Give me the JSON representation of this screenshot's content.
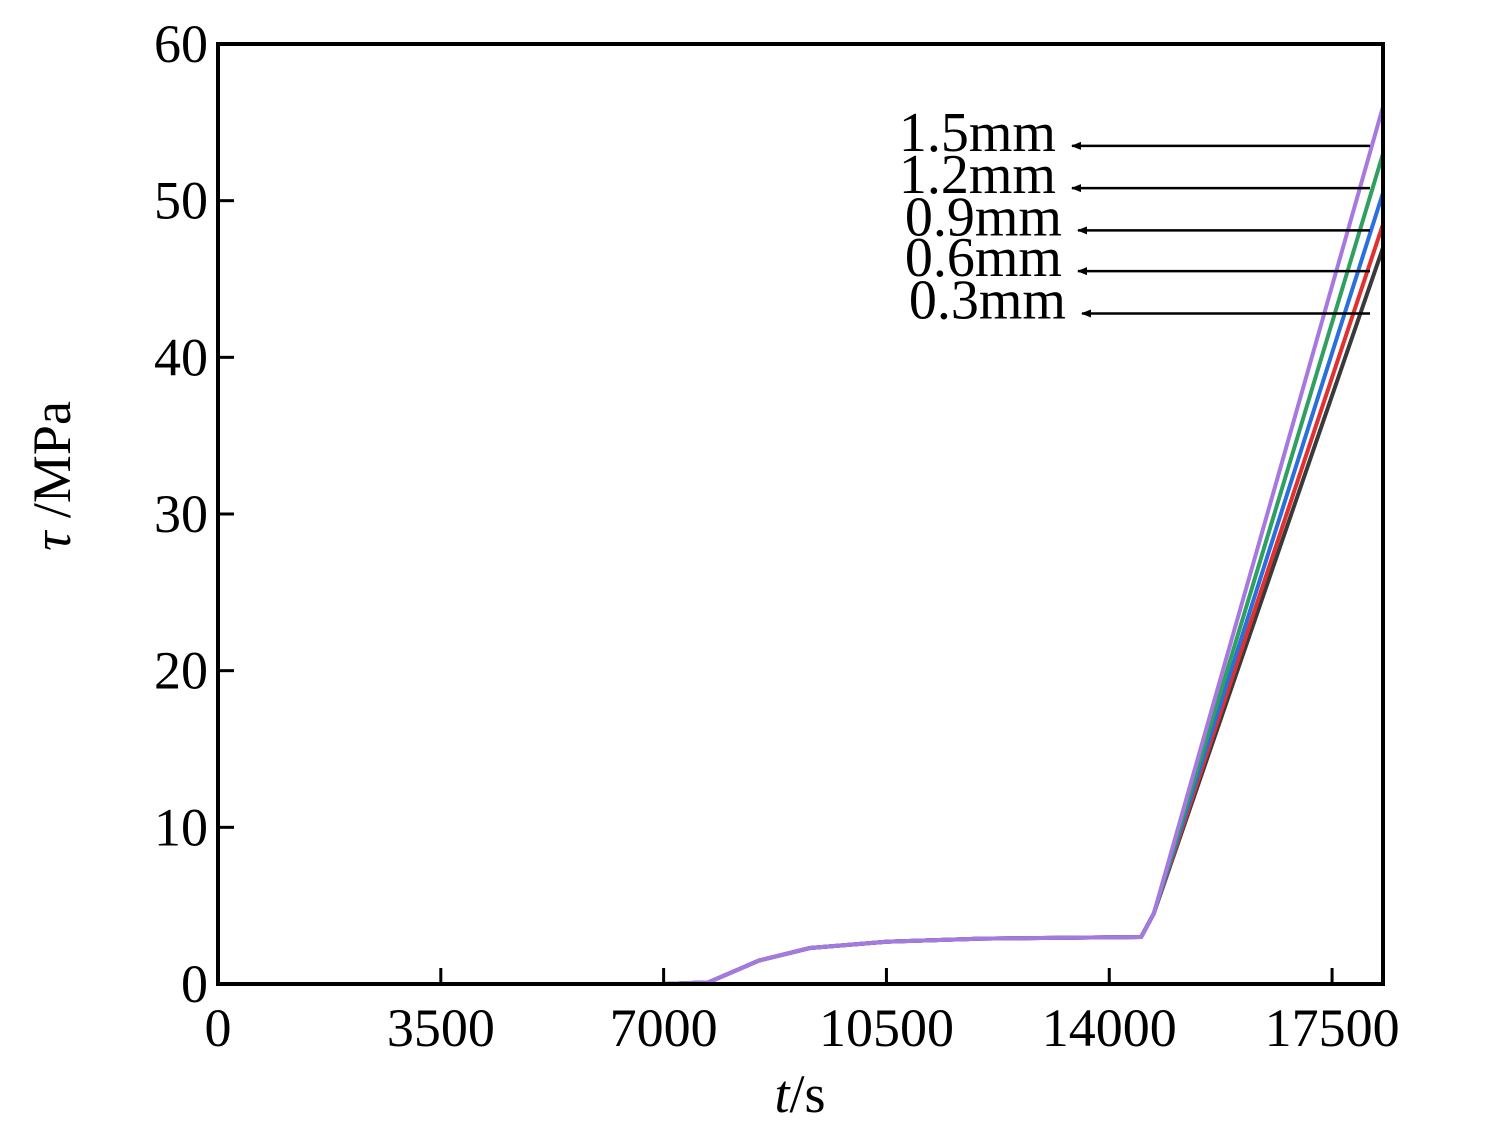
{
  "chart_data": {
    "type": "line",
    "title": "",
    "xlabel_italic": "t",
    "xlabel_rest": "/s",
    "ylabel_italic": "τ",
    "ylabel_rest": " /MPa",
    "xlim": [
      0,
      18300
    ],
    "ylim": [
      0,
      60
    ],
    "x_ticks": [
      0,
      3500,
      7000,
      10500,
      14000,
      17500
    ],
    "x_tick_labels": [
      "0",
      "3500",
      "7000",
      "10500",
      "14000",
      "17500"
    ],
    "y_ticks": [
      0,
      10,
      20,
      30,
      40,
      50,
      60
    ],
    "y_tick_labels": [
      "0",
      "10",
      "20",
      "30",
      "40",
      "50",
      "60"
    ],
    "grid": false,
    "series": [
      {
        "name": "0.3mm",
        "color": "#3a3a3a",
        "x": [
          0,
          7000,
          7700,
          8500,
          9300,
          10500,
          12000,
          14500,
          14700,
          18300
        ],
        "y": [
          0,
          0,
          0.1,
          1.5,
          2.3,
          2.7,
          2.9,
          3.0,
          4.5,
          47.0
        ]
      },
      {
        "name": "0.6mm",
        "color": "#e03030",
        "x": [
          0,
          7000,
          7700,
          8500,
          9300,
          10500,
          12000,
          14500,
          14700,
          18300
        ],
        "y": [
          0,
          0,
          0.1,
          1.5,
          2.3,
          2.7,
          2.9,
          3.0,
          4.5,
          48.5
        ]
      },
      {
        "name": "0.9mm",
        "color": "#2a6fdc",
        "x": [
          0,
          7000,
          7700,
          8500,
          9300,
          10500,
          12000,
          14500,
          14700,
          18300
        ],
        "y": [
          0,
          0,
          0.1,
          1.5,
          2.3,
          2.7,
          2.9,
          3.0,
          4.5,
          50.5
        ]
      },
      {
        "name": "1.2mm",
        "color": "#2fa060",
        "x": [
          0,
          7000,
          7700,
          8500,
          9300,
          10500,
          12000,
          14500,
          14700,
          18300
        ],
        "y": [
          0,
          0,
          0.1,
          1.5,
          2.3,
          2.7,
          2.9,
          3.0,
          4.5,
          53.0
        ]
      },
      {
        "name": "1.5mm",
        "color": "#a678e0",
        "x": [
          0,
          7000,
          7700,
          8500,
          9300,
          10500,
          12000,
          14500,
          14700,
          18300
        ],
        "y": [
          0,
          0,
          0.1,
          1.5,
          2.3,
          2.7,
          2.9,
          3.0,
          4.5,
          56.0
        ]
      }
    ],
    "annotations": [
      {
        "text": "1.5mm",
        "arrow_y": 53.5
      },
      {
        "text": "1.2mm",
        "arrow_y": 50.8
      },
      {
        "text": "0.9mm",
        "arrow_y": 48.1
      },
      {
        "text": "0.6mm",
        "arrow_y": 45.5
      },
      {
        "text": "0.3mm",
        "arrow_y": 42.8
      }
    ]
  }
}
